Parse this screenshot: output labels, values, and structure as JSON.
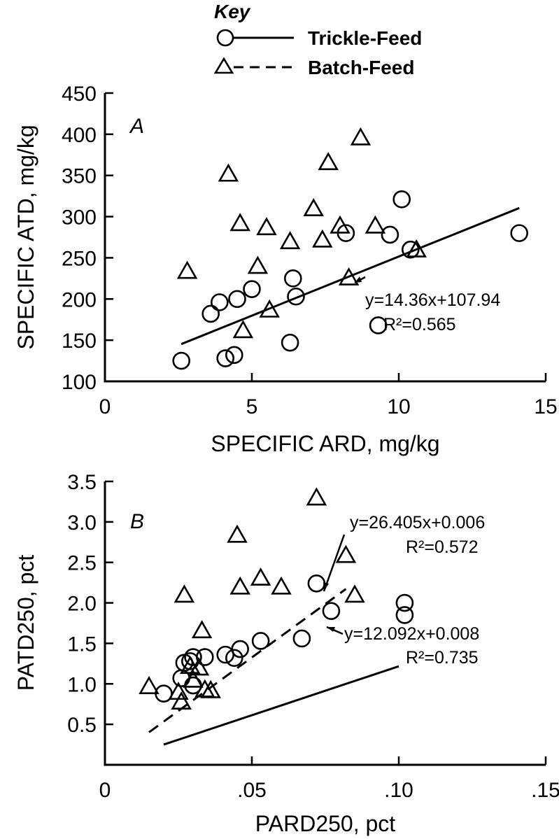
{
  "key": {
    "title": "Key",
    "entries": [
      {
        "label": "Trickle-Feed",
        "marker": "circle",
        "line": "solid"
      },
      {
        "label": "Batch-Feed",
        "marker": "triangle",
        "line": "dashed"
      }
    ]
  },
  "chart_data": [
    {
      "type": "scatter",
      "panel_label": "A",
      "xlabel": "SPECIFIC  ARD, mg/kg",
      "ylabel": "SPECIFIC  ATD, mg/kg",
      "xlim": [
        0,
        15
      ],
      "ylim": [
        100,
        450
      ],
      "xticks": [
        0,
        5,
        10,
        15
      ],
      "xtick_labels": [
        "0",
        "5",
        "10",
        "15"
      ],
      "yticks": [
        100,
        150,
        200,
        250,
        300,
        350,
        400,
        450
      ],
      "ytick_labels": [
        "100",
        "150",
        "200",
        "250",
        "300",
        "350",
        "400",
        "450"
      ],
      "grid": false,
      "series": [
        {
          "name": "Trickle-Feed",
          "marker": "circle",
          "points": [
            [
              2.6,
              125
            ],
            [
              3.6,
              182
            ],
            [
              3.9,
              196
            ],
            [
              4.1,
              128
            ],
            [
              4.4,
              132
            ],
            [
              4.5,
              200
            ],
            [
              5.0,
              212
            ],
            [
              6.3,
              147
            ],
            [
              6.4,
              225
            ],
            [
              6.5,
              203
            ],
            [
              8.2,
              280
            ],
            [
              9.3,
              168
            ],
            [
              9.7,
              278
            ],
            [
              10.1,
              321
            ],
            [
              10.4,
              260
            ],
            [
              14.1,
              280
            ]
          ]
        },
        {
          "name": "Batch-Feed",
          "marker": "triangle",
          "points": [
            [
              2.8,
              234
            ],
            [
              4.2,
              352
            ],
            [
              4.6,
              292
            ],
            [
              4.7,
              162
            ],
            [
              5.2,
              240
            ],
            [
              5.5,
              287
            ],
            [
              5.6,
              187
            ],
            [
              6.3,
              270
            ],
            [
              7.1,
              310
            ],
            [
              7.4,
              272
            ],
            [
              7.6,
              366
            ],
            [
              8.0,
              289
            ],
            [
              8.3,
              226
            ],
            [
              8.7,
              396
            ],
            [
              9.2,
              289
            ],
            [
              10.6,
              260
            ]
          ]
        }
      ],
      "fits": [
        {
          "series": "Trickle-Feed",
          "style": "solid",
          "slope": 14.36,
          "intercept": 107.94,
          "x_range": [
            2.6,
            14.1
          ],
          "equation": "y=14.36x+107.94",
          "r2": "R²=0.565"
        }
      ]
    },
    {
      "type": "scatter",
      "panel_label": "B",
      "xlabel": "PARD250, pct",
      "ylabel": "PATD250, pct",
      "xlim": [
        0,
        0.15
      ],
      "ylim": [
        0,
        3.5
      ],
      "xticks": [
        0,
        0.05,
        0.1,
        0.15
      ],
      "xtick_labels": [
        "0",
        ".05",
        ".10",
        ".15"
      ],
      "yticks": [
        0.5,
        1.0,
        1.5,
        2.0,
        2.5,
        3.0,
        3.5
      ],
      "ytick_labels": [
        "0.5",
        "1.0",
        "1.5",
        "2.0",
        "2.5",
        "3.0",
        "3.5"
      ],
      "grid": false,
      "series": [
        {
          "name": "Trickle-Feed",
          "marker": "circle",
          "points": [
            [
              0.02,
              0.88
            ],
            [
              0.026,
              1.07
            ],
            [
              0.027,
              1.26
            ],
            [
              0.029,
              1.28
            ],
            [
              0.03,
              1.33
            ],
            [
              0.03,
              0.98
            ],
            [
              0.034,
              1.33
            ],
            [
              0.041,
              1.36
            ],
            [
              0.044,
              1.32
            ],
            [
              0.046,
              1.43
            ],
            [
              0.053,
              1.53
            ],
            [
              0.067,
              1.56
            ],
            [
              0.072,
              2.24
            ],
            [
              0.077,
              1.9
            ],
            [
              0.102,
              2.0
            ],
            [
              0.102,
              1.85
            ]
          ]
        },
        {
          "name": "Batch-Feed",
          "marker": "triangle",
          "points": [
            [
              0.015,
              0.97
            ],
            [
              0.025,
              0.9
            ],
            [
              0.026,
              0.78
            ],
            [
              0.027,
              2.1
            ],
            [
              0.029,
              1.22
            ],
            [
              0.03,
              1.05
            ],
            [
              0.032,
              1.2
            ],
            [
              0.033,
              1.66
            ],
            [
              0.034,
              0.93
            ],
            [
              0.036,
              0.92
            ],
            [
              0.045,
              2.84
            ],
            [
              0.046,
              2.2
            ],
            [
              0.053,
              2.31
            ],
            [
              0.06,
              2.2
            ],
            [
              0.072,
              3.3
            ],
            [
              0.082,
              2.59
            ],
            [
              0.085,
              2.1
            ]
          ]
        }
      ],
      "fits": [
        {
          "series": "Batch-Feed",
          "style": "dashed",
          "slope": 26.405,
          "intercept": 0.006,
          "x_range": [
            0.015,
            0.082
          ],
          "equation": "y=26.405x+0.006",
          "r2": "R²=0.572"
        },
        {
          "series": "Trickle-Feed",
          "style": "solid",
          "slope": 12.092,
          "intercept": 0.008,
          "x_range": [
            0.02,
            0.1
          ],
          "equation": "y=12.092x+0.008",
          "r2": "R²=0.735"
        }
      ]
    }
  ]
}
